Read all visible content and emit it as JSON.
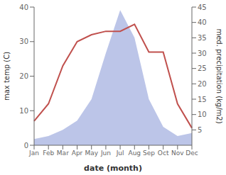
{
  "chart_data": {
    "type": "line",
    "categories": [
      "Jan",
      "Feb",
      "Mar",
      "Apr",
      "May",
      "Jun",
      "Jul",
      "Aug",
      "Sep",
      "Oct",
      "Nov",
      "Dec"
    ],
    "series": [
      {
        "type": "area",
        "color": "#bcc5e8",
        "axis": "y2",
        "values": [
          2,
          3,
          5,
          8,
          15,
          30,
          44,
          35,
          15,
          6,
          3,
          4
        ]
      },
      {
        "type": "line",
        "color": "#c0504d",
        "values": [
          7,
          12,
          23,
          30,
          32,
          33,
          33,
          35,
          27,
          27,
          12,
          5
        ]
      }
    ],
    "xlabel": "date (month)",
    "ylabel": "max temp (C)",
    "y2label": "med. precipitation (kg/m2)",
    "ylim": [
      0,
      40
    ],
    "yticks": [
      0,
      10,
      20,
      30,
      40
    ],
    "y2lim": [
      0,
      45
    ],
    "y2ticks": [
      5,
      10,
      15,
      20,
      25,
      30,
      35,
      40,
      45
    ],
    "grid": false
  }
}
